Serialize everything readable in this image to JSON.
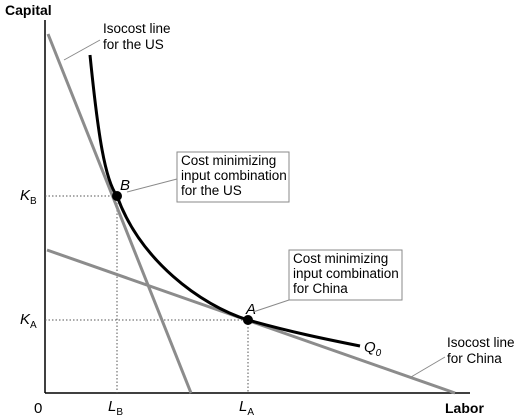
{
  "axes": {
    "y_label": "Capital",
    "x_label": "Labor",
    "origin_label": "0"
  },
  "ticks": {
    "kb": {
      "main": "K",
      "sub": "B"
    },
    "ka": {
      "main": "K",
      "sub": "A"
    },
    "lb": {
      "main": "L",
      "sub": "B"
    },
    "la": {
      "main": "L",
      "sub": "A"
    }
  },
  "points": {
    "b": "B",
    "a": "A"
  },
  "curve_label": {
    "main": "Q",
    "sub": "0"
  },
  "annotations": {
    "isocost_us": [
      "Isocost line",
      "for the US"
    ],
    "isocost_china": [
      "Isocost line",
      "for China"
    ],
    "cost_min_us": [
      "Cost minimizing",
      "input combination",
      "for the US"
    ],
    "cost_min_china": [
      "Cost minimizing",
      "input combination",
      "for China"
    ]
  },
  "colors": {
    "isocost_line": "#8c8c8c",
    "isoquant": "#000000",
    "callout_border": "#8a8a8a",
    "guide_line": "#555555"
  }
}
